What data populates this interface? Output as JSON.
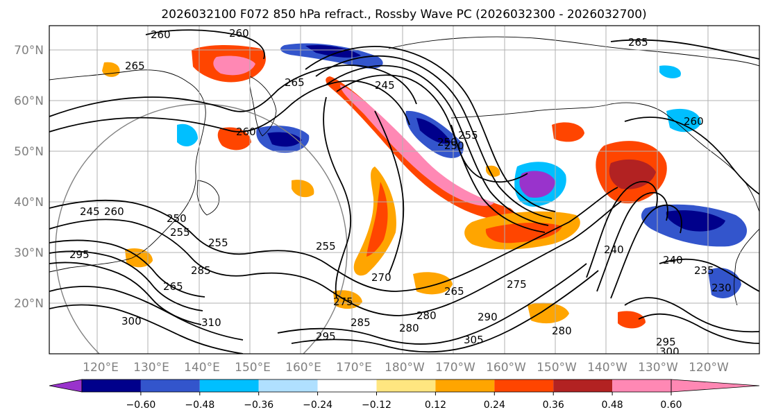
{
  "figure": {
    "title": "2026032100 F072 850 hPa refract., Rossby Wave PC (2026032300 - 2026032700)"
  },
  "map": {
    "lat_labels": [
      "70°N",
      "60°N",
      "50°N",
      "40°N",
      "30°N",
      "20°N"
    ],
    "lat_values": [
      70,
      60,
      50,
      40,
      30,
      20
    ],
    "lon_labels": [
      "120°E",
      "130°E",
      "140°E",
      "150°E",
      "160°E",
      "170°E",
      "180°W",
      "170°W",
      "160°W",
      "150°W",
      "140°W",
      "130°W",
      "120°W"
    ],
    "contour_labels": [
      "260",
      "260",
      "265",
      "265",
      "265",
      "260",
      "260",
      "245",
      "255",
      "250",
      "240",
      "245",
      "250",
      "255",
      "255",
      "265",
      "270",
      "275",
      "280",
      "285",
      "290",
      "295",
      "300",
      "305",
      "310",
      "295",
      "280",
      "285",
      "240",
      "235",
      "230",
      "275",
      "280",
      "295",
      "300",
      "250",
      "255",
      "260",
      "265"
    ],
    "colors": {
      "land_outline": "#000000",
      "grid": "#b0b0b0",
      "contour": "#000000"
    }
  },
  "colorbar": {
    "tick_labels": [
      "−0.60",
      "−0.48",
      "−0.36",
      "−0.24",
      "−0.12",
      "0.12",
      "0.24",
      "0.36",
      "0.48",
      "0.60"
    ],
    "tick_values": [
      -0.6,
      -0.48,
      -0.36,
      -0.24,
      -0.12,
      0.12,
      0.24,
      0.36,
      0.48,
      0.6
    ],
    "colors": [
      "#9933cc",
      "#00008b",
      "#3355cc",
      "#00bfff",
      "#b0e0ff",
      "#ffffff",
      "#ffe680",
      "#ffa500",
      "#ff4500",
      "#b22222",
      "#ff88b4"
    ]
  }
}
